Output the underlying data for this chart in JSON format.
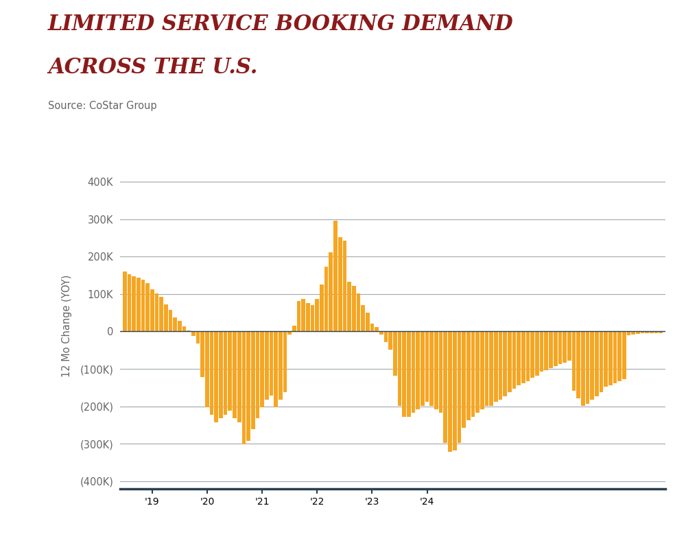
{
  "title_line1": "LIMITED SERVICE BOOKING DEMAND",
  "title_line2": "ACROSS THE U.S.",
  "source": "Source: CoStar Group",
  "title_color": "#8B1A1A",
  "source_color": "#666666",
  "bar_color": "#F5A623",
  "background_color": "#FFFFFF",
  "axis_color": "#2C3E50",
  "grid_color": "#A0A8B0",
  "ylabel": "12 Mo Change (YOY)",
  "ylim": [
    -420000,
    450000
  ],
  "yticks": [
    -400000,
    -300000,
    -200000,
    -100000,
    0,
    100000,
    200000,
    300000,
    400000
  ],
  "ytick_labels": [
    "(400K)",
    "(300K)",
    "(200K)",
    "(100K)",
    "0",
    "100K",
    "200K",
    "300K",
    "400K"
  ],
  "xtick_labels": [
    "'19",
    "'20",
    "'21",
    "'22",
    "'23",
    "'24"
  ],
  "year_tick_indices": [
    6,
    18,
    30,
    42,
    54,
    66
  ],
  "values": [
    160000,
    152000,
    148000,
    143000,
    138000,
    128000,
    112000,
    102000,
    93000,
    73000,
    58000,
    38000,
    28000,
    13000,
    3000,
    -12000,
    -32000,
    -122000,
    -202000,
    -222000,
    -242000,
    -232000,
    -222000,
    -212000,
    -232000,
    -242000,
    -302000,
    -292000,
    -262000,
    -232000,
    -202000,
    -182000,
    -172000,
    -202000,
    -182000,
    -162000,
    -8000,
    16000,
    82000,
    86000,
    76000,
    71000,
    86000,
    126000,
    172000,
    212000,
    296000,
    252000,
    242000,
    132000,
    122000,
    102000,
    71000,
    51000,
    21000,
    11000,
    -9000,
    -29000,
    -49000,
    -118000,
    -198000,
    -228000,
    -228000,
    -218000,
    -208000,
    -198000,
    -188000,
    -198000,
    -208000,
    -218000,
    -298000,
    -322000,
    -318000,
    -298000,
    -258000,
    -238000,
    -228000,
    -218000,
    -208000,
    -198000,
    -198000,
    -188000,
    -183000,
    -173000,
    -163000,
    -153000,
    -143000,
    -138000,
    -133000,
    -123000,
    -118000,
    -108000,
    -103000,
    -98000,
    -93000,
    -88000,
    -83000,
    -78000,
    -158000,
    -178000,
    -198000,
    -193000,
    -183000,
    -173000,
    -163000,
    -148000,
    -143000,
    -138000,
    -133000,
    -128000,
    -10000,
    -8000,
    -6000,
    -5000,
    -5000,
    -5000,
    -5000,
    -5000
  ]
}
